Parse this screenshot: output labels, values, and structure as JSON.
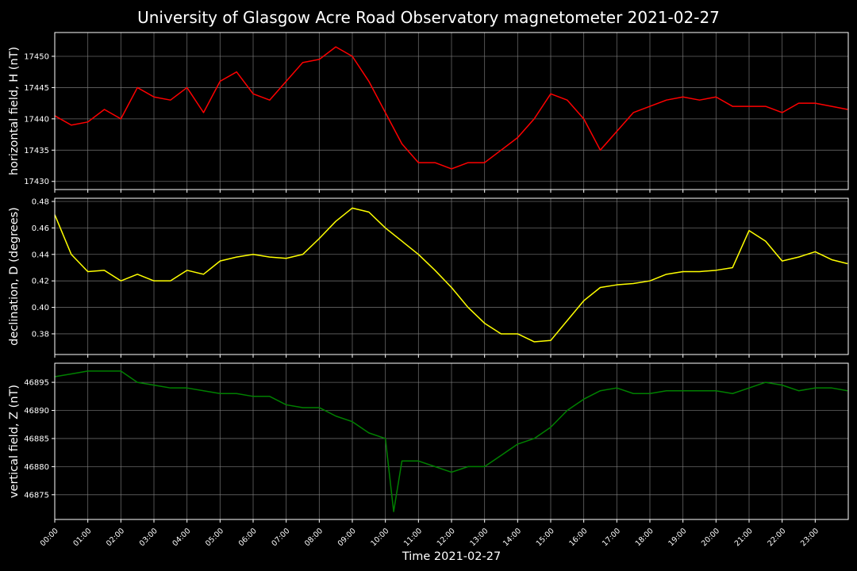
{
  "chart_data": [
    {
      "type": "line",
      "title": "University of Glasgow Acre Road Observatory magnetometer 2021-02-27",
      "ylabel": "horizontal field, H (nT)",
      "color": "#ff0000",
      "grid": true,
      "x": [
        0,
        0.5,
        1,
        1.5,
        2,
        2.5,
        3,
        3.5,
        4,
        4.5,
        5,
        5.5,
        6,
        6.5,
        7,
        7.5,
        8,
        8.5,
        9,
        9.5,
        10,
        10.5,
        11,
        11.5,
        12,
        12.5,
        13,
        13.5,
        14,
        14.5,
        15,
        15.5,
        16,
        16.5,
        17,
        17.5,
        18,
        18.5,
        19,
        19.5,
        20,
        20.5,
        21,
        21.5,
        22,
        22.5,
        23,
        23.5,
        23.98
      ],
      "values": [
        17440.5,
        17439,
        17439.5,
        17441.5,
        17440,
        17445,
        17443.5,
        17443,
        17445,
        17441,
        17446,
        17447.5,
        17444,
        17443,
        17446,
        17449,
        17449.5,
        17451.5,
        17450,
        17446,
        17441,
        17436,
        17433,
        17433,
        17432,
        17433,
        17433,
        17435,
        17437,
        17440,
        17444,
        17443,
        17440,
        17435,
        17438,
        17441,
        17442,
        17443,
        17443.5,
        17443,
        17443.5,
        17442,
        17442,
        17442,
        17441,
        17442.5,
        17442.5,
        17442,
        17441.5
      ],
      "xlim": [
        0,
        24
      ],
      "xticks": [
        0,
        1,
        2,
        3,
        4,
        5,
        6,
        7,
        8,
        9,
        10,
        11,
        12,
        13,
        14,
        15,
        16,
        17,
        18,
        19,
        20,
        21,
        22,
        23
      ],
      "ylim": [
        17428.7,
        17453.8
      ],
      "yticks": [
        17430,
        17435,
        17440,
        17445,
        17450
      ]
    },
    {
      "type": "line",
      "ylabel": "declination, D (degrees)",
      "color": "#ffff00",
      "grid": true,
      "x": [
        0,
        0.5,
        1,
        1.5,
        2,
        2.5,
        3,
        3.5,
        4,
        4.5,
        5,
        5.5,
        6,
        6.5,
        7,
        7.5,
        8,
        8.5,
        9,
        9.5,
        10,
        10.5,
        11,
        11.5,
        12,
        12.5,
        13,
        13.5,
        14,
        14.5,
        15,
        15.5,
        16,
        16.5,
        17,
        17.5,
        18,
        18.5,
        19,
        19.5,
        20,
        20.5,
        21,
        21.5,
        22,
        22.5,
        23,
        23.5,
        23.98
      ],
      "values": [
        0.47,
        0.44,
        0.427,
        0.428,
        0.42,
        0.425,
        0.42,
        0.42,
        0.428,
        0.425,
        0.435,
        0.438,
        0.44,
        0.438,
        0.437,
        0.44,
        0.452,
        0.465,
        0.475,
        0.472,
        0.46,
        0.45,
        0.44,
        0.428,
        0.415,
        0.4,
        0.388,
        0.38,
        0.38,
        0.374,
        0.375,
        0.39,
        0.405,
        0.415,
        0.417,
        0.418,
        0.42,
        0.425,
        0.427,
        0.427,
        0.428,
        0.43,
        0.458,
        0.45,
        0.435,
        0.438,
        0.442,
        0.436,
        0.433
      ],
      "xlim": [
        0,
        24
      ],
      "xticks": [
        0,
        1,
        2,
        3,
        4,
        5,
        6,
        7,
        8,
        9,
        10,
        11,
        12,
        13,
        14,
        15,
        16,
        17,
        18,
        19,
        20,
        21,
        22,
        23
      ],
      "ylim": [
        0.3644,
        0.4824
      ],
      "yticks": [
        {
          "value": 0.38,
          "label": "0.38"
        },
        {
          "value": 0.4,
          "label": "0.40"
        },
        {
          "value": 0.42,
          "label": "0.42"
        },
        {
          "value": 0.44,
          "label": "0.44"
        },
        {
          "value": 0.46,
          "label": "0.46"
        },
        {
          "value": 0.48,
          "label": "0.48"
        }
      ]
    },
    {
      "type": "line",
      "ylabel": "vertical field, Z (nT)",
      "xlabel": "Time 2021-02-27",
      "color": "#008000",
      "grid": true,
      "x": [
        0,
        0.5,
        1,
        1.5,
        2,
        2.5,
        3,
        3.5,
        4,
        4.5,
        5,
        5.5,
        6,
        6.5,
        7,
        7.5,
        8,
        8.5,
        9,
        9.5,
        10,
        10.25,
        10.5,
        11,
        11.5,
        12,
        12.5,
        13,
        13.5,
        14,
        14.5,
        15,
        15.5,
        16,
        16.5,
        17,
        17.5,
        18,
        18.5,
        19,
        19.5,
        20,
        20.5,
        21,
        21.5,
        22,
        22.5,
        23,
        23.5,
        23.98
      ],
      "values": [
        46896,
        46896.5,
        46897,
        46897,
        46897,
        46895,
        46894.5,
        46894,
        46894,
        46893.5,
        46893,
        46893,
        46892.5,
        46892.5,
        46891,
        46890.5,
        46890.5,
        46889,
        46888,
        46886,
        46885,
        46872,
        46881,
        46881,
        46880,
        46879,
        46880,
        46880,
        46882,
        46884,
        46885,
        46887,
        46890,
        46892,
        46893.5,
        46894,
        46893,
        46893,
        46893.5,
        46893.5,
        46893.5,
        46893.5,
        46893,
        46894,
        46895,
        46894.5,
        46893.5,
        46894,
        46894,
        46893.5
      ],
      "xlim": [
        0,
        24
      ],
      "xticks": [
        {
          "value": 0,
          "label": "00:00"
        },
        {
          "value": 1,
          "label": "01:00"
        },
        {
          "value": 2,
          "label": "02:00"
        },
        {
          "value": 3,
          "label": "03:00"
        },
        {
          "value": 4,
          "label": "04:00"
        },
        {
          "value": 5,
          "label": "05:00"
        },
        {
          "value": 6,
          "label": "06:00"
        },
        {
          "value": 7,
          "label": "07:00"
        },
        {
          "value": 8,
          "label": "08:00"
        },
        {
          "value": 9,
          "label": "09:00"
        },
        {
          "value": 10,
          "label": "10:00"
        },
        {
          "value": 11,
          "label": "11:00"
        },
        {
          "value": 12,
          "label": "12:00"
        },
        {
          "value": 13,
          "label": "13:00"
        },
        {
          "value": 14,
          "label": "14:00"
        },
        {
          "value": 15,
          "label": "15:00"
        },
        {
          "value": 16,
          "label": "16:00"
        },
        {
          "value": 17,
          "label": "17:00"
        },
        {
          "value": 18,
          "label": "18:00"
        },
        {
          "value": 19,
          "label": "19:00"
        },
        {
          "value": 20,
          "label": "20:00"
        },
        {
          "value": 21,
          "label": "21:00"
        },
        {
          "value": 22,
          "label": "22:00"
        },
        {
          "value": 23,
          "label": "23:00"
        }
      ],
      "ylim": [
        46870.6,
        46898.4
      ],
      "yticks": [
        46875,
        46880,
        46885,
        46890,
        46895
      ]
    }
  ]
}
